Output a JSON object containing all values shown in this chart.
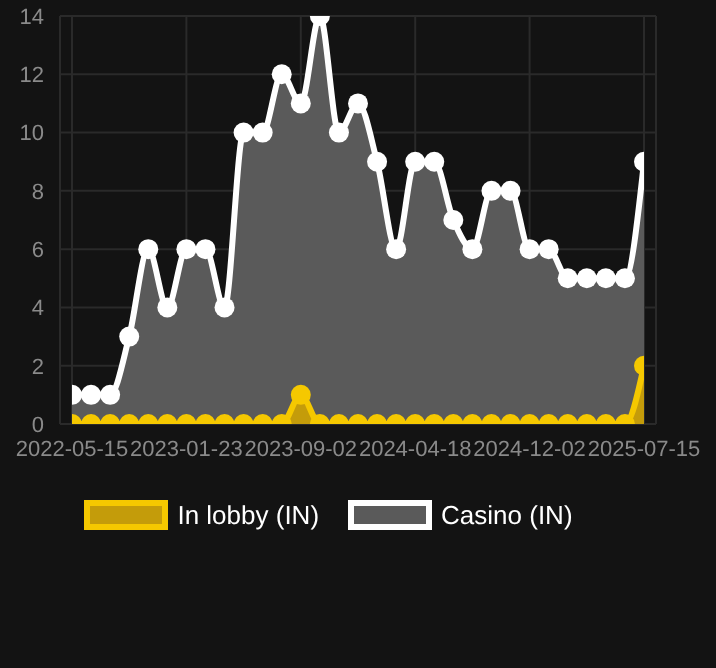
{
  "chart_data": {
    "type": "area",
    "categories": [
      "2022-05-15",
      null,
      null,
      null,
      null,
      null,
      "2023-01-23",
      null,
      null,
      null,
      null,
      null,
      "2023-09-02",
      null,
      null,
      null,
      null,
      null,
      "2024-04-18",
      null,
      null,
      null,
      null,
      null,
      "2024-12-02",
      null,
      null,
      null,
      null,
      null,
      "2025-07-15"
    ],
    "series": [
      {
        "name": "In lobby (IN)",
        "color": "#f5c800",
        "values": [
          0,
          0,
          0,
          0,
          0,
          0,
          0,
          0,
          0,
          0,
          0,
          0,
          1,
          0,
          0,
          0,
          0,
          0,
          0,
          0,
          0,
          0,
          0,
          0,
          0,
          0,
          0,
          0,
          0,
          0,
          2
        ]
      },
      {
        "name": "Casino (IN)",
        "color": "#ffffff",
        "values": [
          1,
          1,
          1,
          3,
          6,
          4,
          6,
          6,
          4,
          10,
          10,
          12,
          11,
          14,
          10,
          11,
          9,
          6,
          9,
          9,
          7,
          6,
          8,
          8,
          6,
          6,
          5,
          5,
          5,
          5,
          9
        ]
      }
    ],
    "ylim": [
      0,
      14
    ],
    "yticks": [
      0,
      2,
      4,
      6,
      8,
      10,
      12,
      14
    ],
    "grid": true,
    "legend": "bottom",
    "marker": "circle"
  }
}
